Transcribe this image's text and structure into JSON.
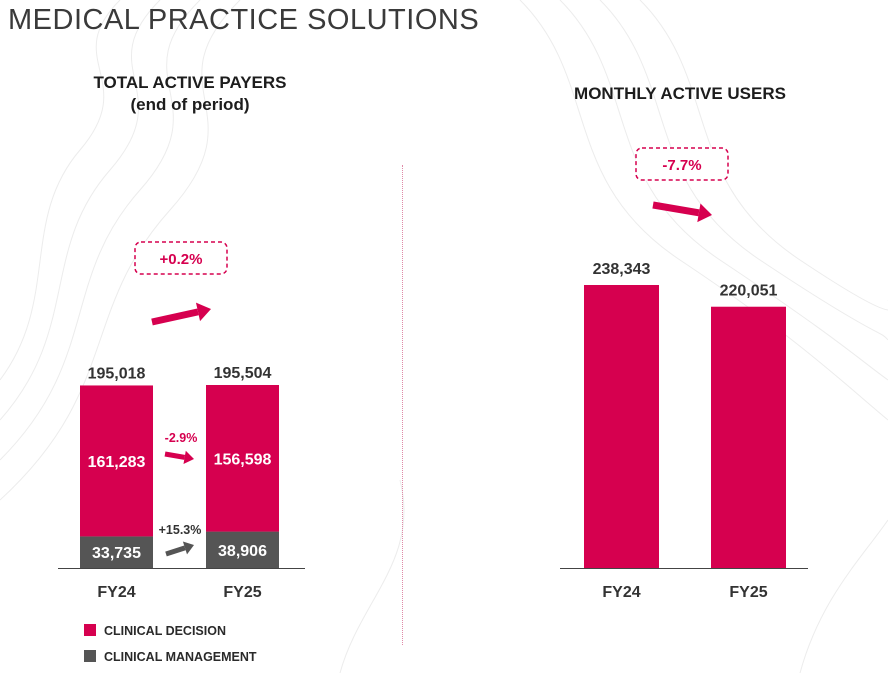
{
  "page_title": "MEDICAL PRACTICE SOLUTIONS",
  "colors": {
    "clinical_decision": "#d6004f",
    "clinical_management": "#555555",
    "accent": "#d6004f"
  },
  "chart_data": [
    {
      "type": "bar",
      "stacked": true,
      "title": "TOTAL ACTIVE PAYERS",
      "subtitle": "(end of period)",
      "categories": [
        "FY24",
        "FY25"
      ],
      "series": [
        {
          "name": "CLINICAL MANAGEMENT",
          "values": [
            33735,
            38906
          ],
          "labels": [
            "33,735",
            "38,906"
          ],
          "color": "#555555"
        },
        {
          "name": "CLINICAL DECISION",
          "values": [
            161283,
            156598
          ],
          "labels": [
            "161,283",
            "156,598"
          ],
          "color": "#d6004f"
        }
      ],
      "totals": [
        195018,
        195504
      ],
      "total_labels": [
        "195,018",
        "195,504"
      ],
      "changes": {
        "total": "+0.2%",
        "clinical_decision": "-2.9%",
        "clinical_management": "+15.3%"
      },
      "legend_position": "bottom-left",
      "grid": false
    },
    {
      "type": "bar",
      "title": "MONTHLY ACTIVE USERS",
      "categories": [
        "FY24",
        "FY25"
      ],
      "values": [
        238343,
        220051
      ],
      "value_labels": [
        "238,343",
        "220,051"
      ],
      "change": "-7.7%",
      "color": "#d6004f",
      "grid": false
    }
  ]
}
